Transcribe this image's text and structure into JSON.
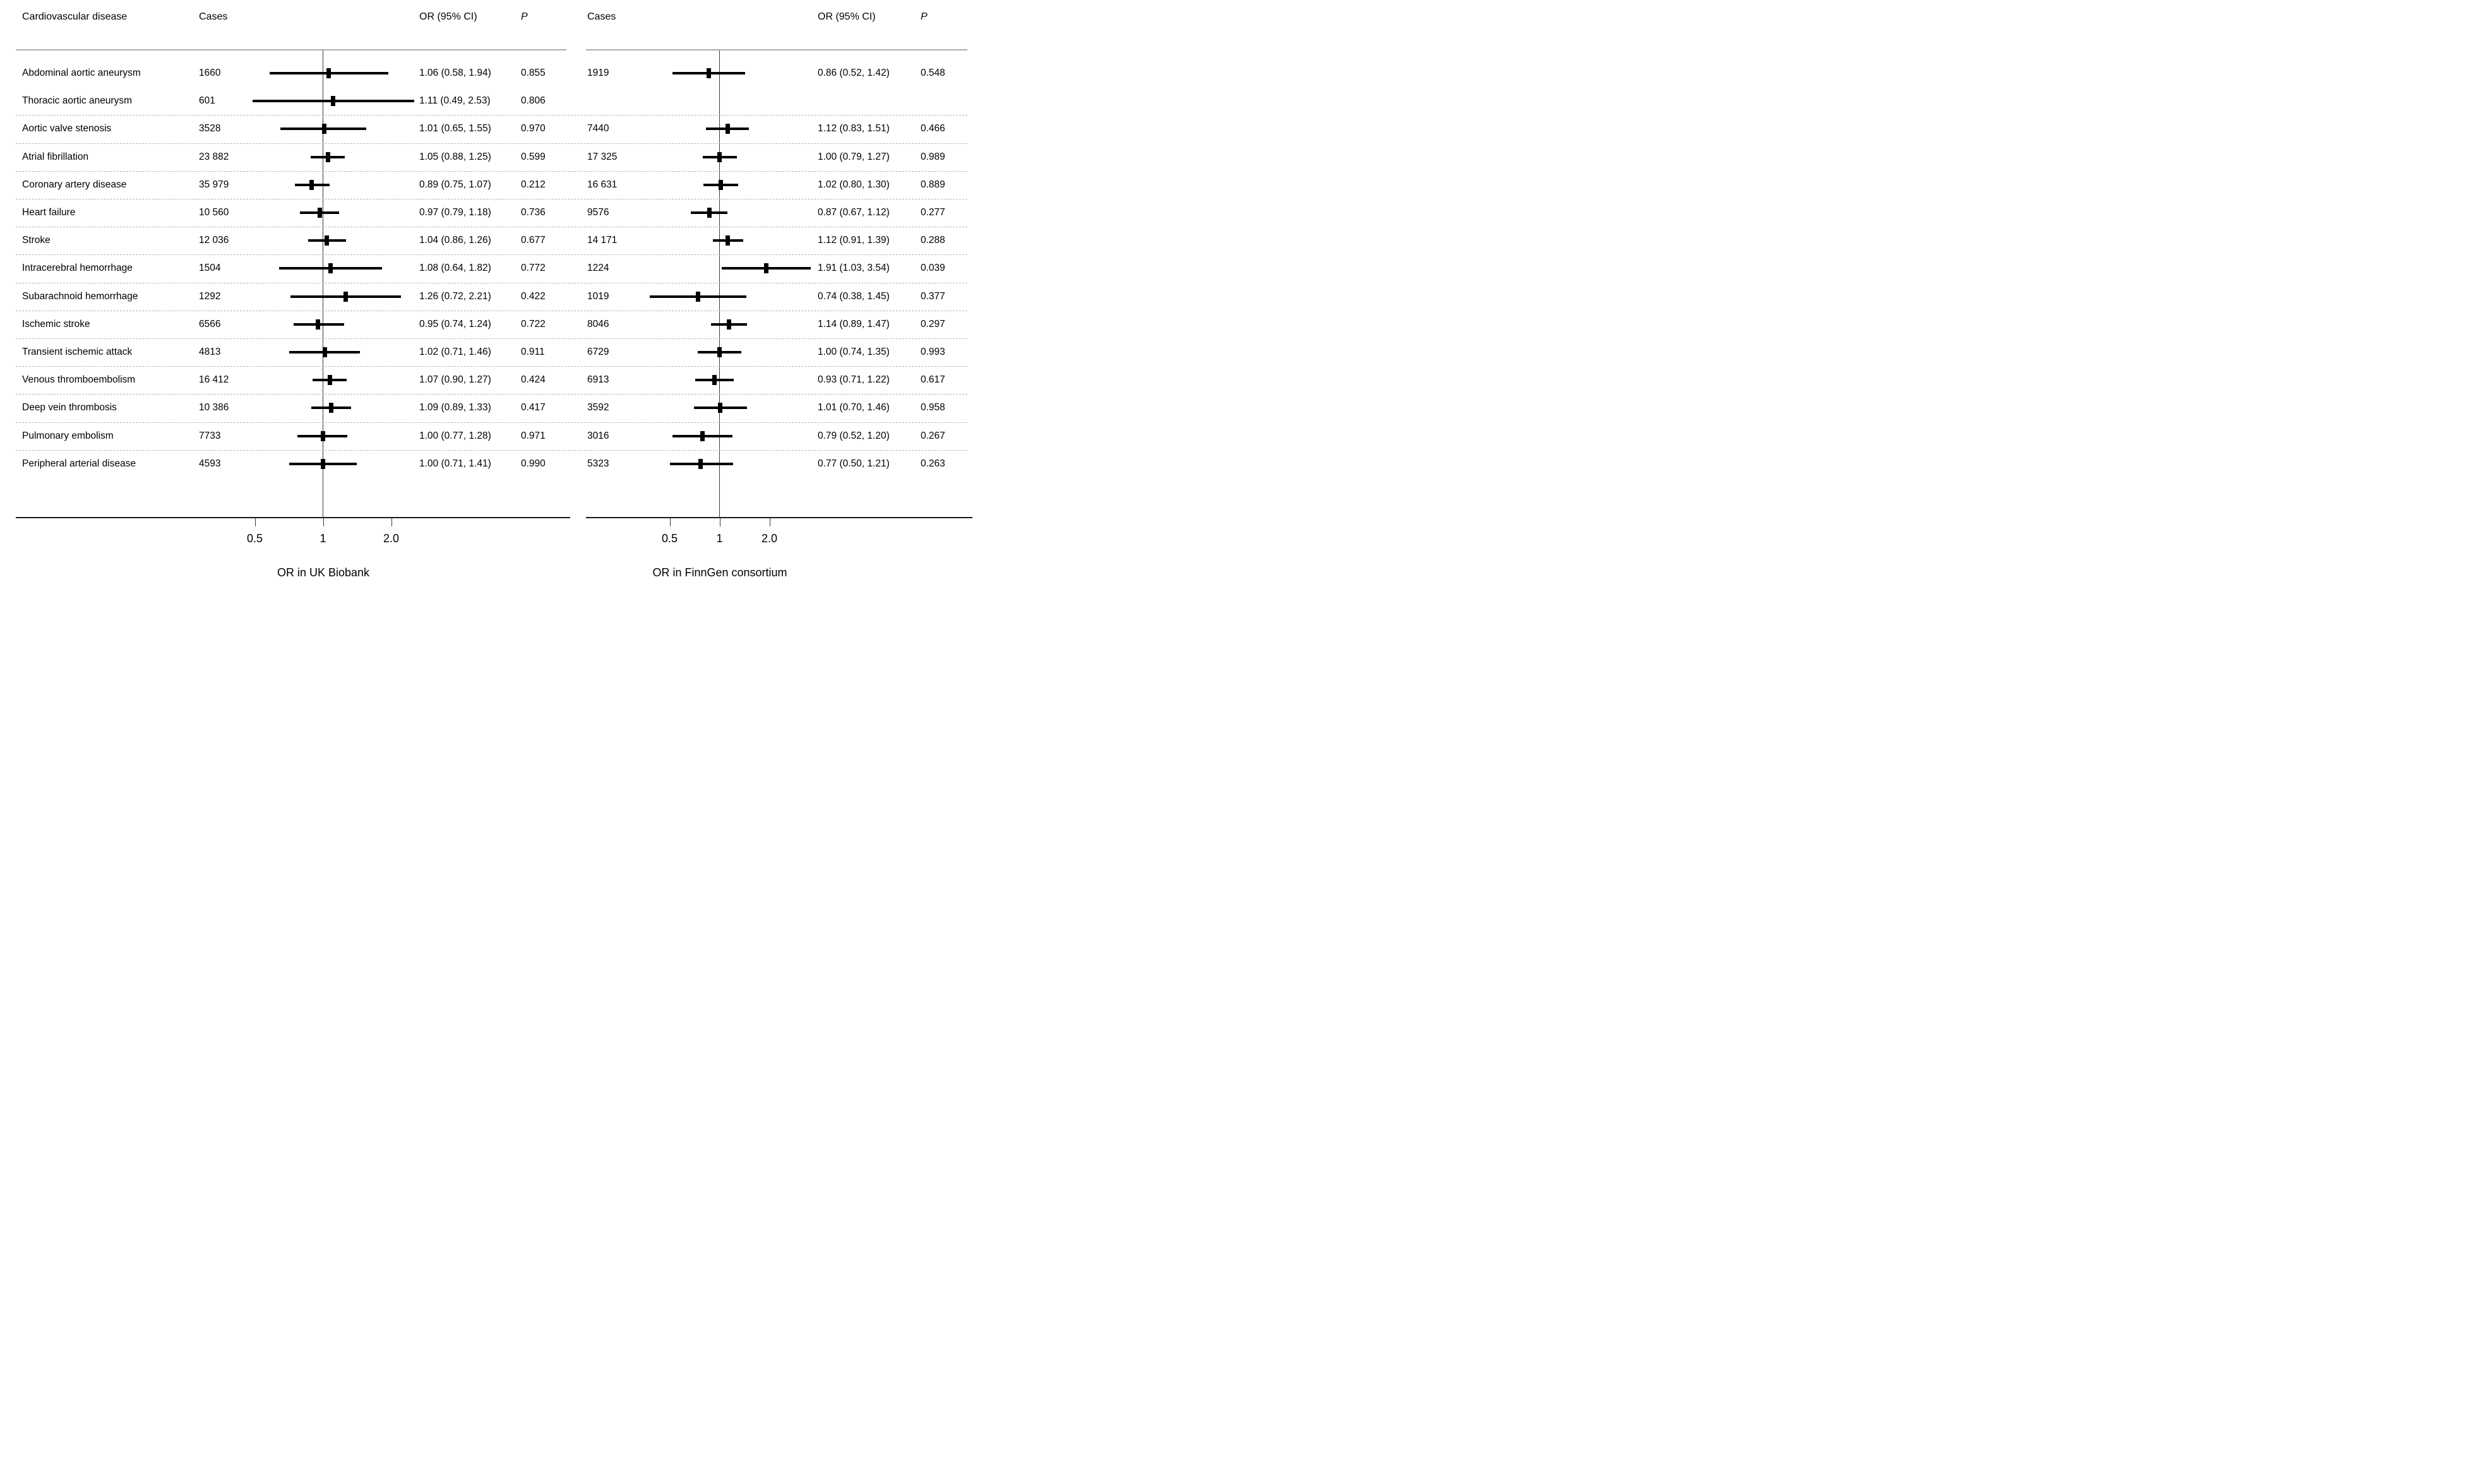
{
  "header": {
    "disease": "Cardiovascular disease",
    "cases": "Cases",
    "or": "OR (95% CI)",
    "p": "P"
  },
  "chart_data": {
    "type": "forest",
    "x_scale": "log",
    "x_tick_labels": [
      "0.5",
      "1",
      "2.0"
    ],
    "x_tick_values": [
      0.5,
      1,
      2.0
    ],
    "reference_line": 1,
    "legend_position": "none",
    "grid": "dashed row separators",
    "panels": [
      {
        "id": "ukb",
        "axis_title": "OR in UK Biobank"
      },
      {
        "id": "finngen",
        "axis_title": "OR in FinnGen consortium"
      }
    ],
    "rows": [
      {
        "disease": "Abdominal aortic aneurysm",
        "sep_below": false,
        "ukb": {
          "cases": "1660",
          "or": 1.06,
          "ci_low": 0.58,
          "ci_high": 1.94,
          "or_text": "1.06 (0.58, 1.94)",
          "p": "0.855"
        },
        "finngen": {
          "cases": "1919",
          "or": 0.86,
          "ci_low": 0.52,
          "ci_high": 1.42,
          "or_text": "0.86 (0.52, 1.42)",
          "p": "0.548"
        }
      },
      {
        "disease": "Thoracic aortic aneurysm",
        "sep_below": true,
        "ukb": {
          "cases": "601",
          "or": 1.11,
          "ci_low": 0.49,
          "ci_high": 2.53,
          "or_text": "1.11 (0.49, 2.53)",
          "p": "0.806"
        },
        "finngen": null
      },
      {
        "disease": "Aortic valve stenosis",
        "sep_below": true,
        "ukb": {
          "cases": "3528",
          "or": 1.01,
          "ci_low": 0.65,
          "ci_high": 1.55,
          "or_text": "1.01 (0.65, 1.55)",
          "p": "0.970"
        },
        "finngen": {
          "cases": "7440",
          "or": 1.12,
          "ci_low": 0.83,
          "ci_high": 1.51,
          "or_text": "1.12 (0.83, 1.51)",
          "p": "0.466"
        }
      },
      {
        "disease": "Atrial fibrillation",
        "sep_below": true,
        "ukb": {
          "cases": "23 882",
          "or": 1.05,
          "ci_low": 0.88,
          "ci_high": 1.25,
          "or_text": "1.05 (0.88, 1.25)",
          "p": "0.599"
        },
        "finngen": {
          "cases": "17 325",
          "or": 1.0,
          "ci_low": 0.79,
          "ci_high": 1.27,
          "or_text": "1.00 (0.79, 1.27)",
          "p": "0.989"
        }
      },
      {
        "disease": "Coronary artery disease",
        "sep_below": true,
        "ukb": {
          "cases": "35 979",
          "or": 0.89,
          "ci_low": 0.75,
          "ci_high": 1.07,
          "or_text": "0.89 (0.75, 1.07)",
          "p": "0.212"
        },
        "finngen": {
          "cases": "16 631",
          "or": 1.02,
          "ci_low": 0.8,
          "ci_high": 1.3,
          "or_text": "1.02 (0.80, 1.30)",
          "p": "0.889"
        }
      },
      {
        "disease": "Heart failure",
        "sep_below": true,
        "ukb": {
          "cases": "10 560",
          "or": 0.97,
          "ci_low": 0.79,
          "ci_high": 1.18,
          "or_text": "0.97 (0.79, 1.18)",
          "p": "0.736"
        },
        "finngen": {
          "cases": "9576",
          "or": 0.87,
          "ci_low": 0.67,
          "ci_high": 1.12,
          "or_text": "0.87 (0.67, 1.12)",
          "p": "0.277"
        }
      },
      {
        "disease": "Stroke",
        "sep_below": true,
        "ukb": {
          "cases": "12 036",
          "or": 1.04,
          "ci_low": 0.86,
          "ci_high": 1.26,
          "or_text": "1.04 (0.86, 1.26)",
          "p": "0.677"
        },
        "finngen": {
          "cases": "14 171",
          "or": 1.12,
          "ci_low": 0.91,
          "ci_high": 1.39,
          "or_text": "1.12 (0.91, 1.39)",
          "p": "0.288"
        }
      },
      {
        "disease": "Intracerebral hemorrhage",
        "sep_below": true,
        "ukb": {
          "cases": "1504",
          "or": 1.08,
          "ci_low": 0.64,
          "ci_high": 1.82,
          "or_text": "1.08 (0.64, 1.82)",
          "p": "0.772"
        },
        "finngen": {
          "cases": "1224",
          "or": 1.91,
          "ci_low": 1.03,
          "ci_high": 3.54,
          "or_text": "1.91 (1.03, 3.54)",
          "p": "0.039"
        }
      },
      {
        "disease": "Subarachnoid hemorrhage",
        "sep_below": true,
        "ukb": {
          "cases": "1292",
          "or": 1.26,
          "ci_low": 0.72,
          "ci_high": 2.21,
          "or_text": "1.26 (0.72, 2.21)",
          "p": "0.422"
        },
        "finngen": {
          "cases": "1019",
          "or": 0.74,
          "ci_low": 0.38,
          "ci_high": 1.45,
          "or_text": "0.74 (0.38, 1.45)",
          "p": "0.377"
        }
      },
      {
        "disease": "Ischemic stroke",
        "sep_below": true,
        "ukb": {
          "cases": "6566",
          "or": 0.95,
          "ci_low": 0.74,
          "ci_high": 1.24,
          "or_text": "0.95 (0.74, 1.24)",
          "p": "0.722"
        },
        "finngen": {
          "cases": "8046",
          "or": 1.14,
          "ci_low": 0.89,
          "ci_high": 1.47,
          "or_text": "1.14 (0.89, 1.47)",
          "p": "0.297"
        }
      },
      {
        "disease": "Transient ischemic attack",
        "sep_below": true,
        "ukb": {
          "cases": "4813",
          "or": 1.02,
          "ci_low": 0.71,
          "ci_high": 1.46,
          "or_text": "1.02 (0.71, 1.46)",
          "p": "0.911"
        },
        "finngen": {
          "cases": "6729",
          "or": 1.0,
          "ci_low": 0.74,
          "ci_high": 1.35,
          "or_text": "1.00 (0.74, 1.35)",
          "p": "0.993"
        }
      },
      {
        "disease": "Venous thromboembolism",
        "sep_below": true,
        "ukb": {
          "cases": "16 412",
          "or": 1.07,
          "ci_low": 0.9,
          "ci_high": 1.27,
          "or_text": "1.07 (0.90, 1.27)",
          "p": "0.424"
        },
        "finngen": {
          "cases": "6913",
          "or": 0.93,
          "ci_low": 0.71,
          "ci_high": 1.22,
          "or_text": "0.93 (0.71, 1.22)",
          "p": "0.617"
        }
      },
      {
        "disease": "Deep vein thrombosis",
        "sep_below": true,
        "ukb": {
          "cases": "10 386",
          "or": 1.09,
          "ci_low": 0.89,
          "ci_high": 1.33,
          "or_text": "1.09 (0.89, 1.33)",
          "p": "0.417"
        },
        "finngen": {
          "cases": "3592",
          "or": 1.01,
          "ci_low": 0.7,
          "ci_high": 1.46,
          "or_text": "1.01 (0.70, 1.46)",
          "p": "0.958"
        }
      },
      {
        "disease": "Pulmonary embolism",
        "sep_below": true,
        "ukb": {
          "cases": "7733",
          "or": 1.0,
          "ci_low": 0.77,
          "ci_high": 1.28,
          "or_text": "1.00 (0.77, 1.28)",
          "p": "0.971"
        },
        "finngen": {
          "cases": "3016",
          "or": 0.79,
          "ci_low": 0.52,
          "ci_high": 1.2,
          "or_text": "0.79 (0.52, 1.20)",
          "p": "0.267"
        }
      },
      {
        "disease": "Peripheral arterial disease",
        "sep_below": false,
        "ukb": {
          "cases": "4593",
          "or": 1.0,
          "ci_low": 0.71,
          "ci_high": 1.41,
          "or_text": "1.00 (0.71, 1.41)",
          "p": "0.990"
        },
        "finngen": {
          "cases": "5323",
          "or": 0.77,
          "ci_low": 0.5,
          "ci_high": 1.21,
          "or_text": "0.77 (0.50, 1.21)",
          "p": "0.263"
        }
      }
    ]
  },
  "colors": {
    "text": "#000000",
    "marker": "#000000",
    "ci_line": "#000000",
    "reference_line": "#3c3c3c",
    "header_rule": "#adadad",
    "row_separator": "#b5b5b5",
    "background": "#ffffff"
  }
}
